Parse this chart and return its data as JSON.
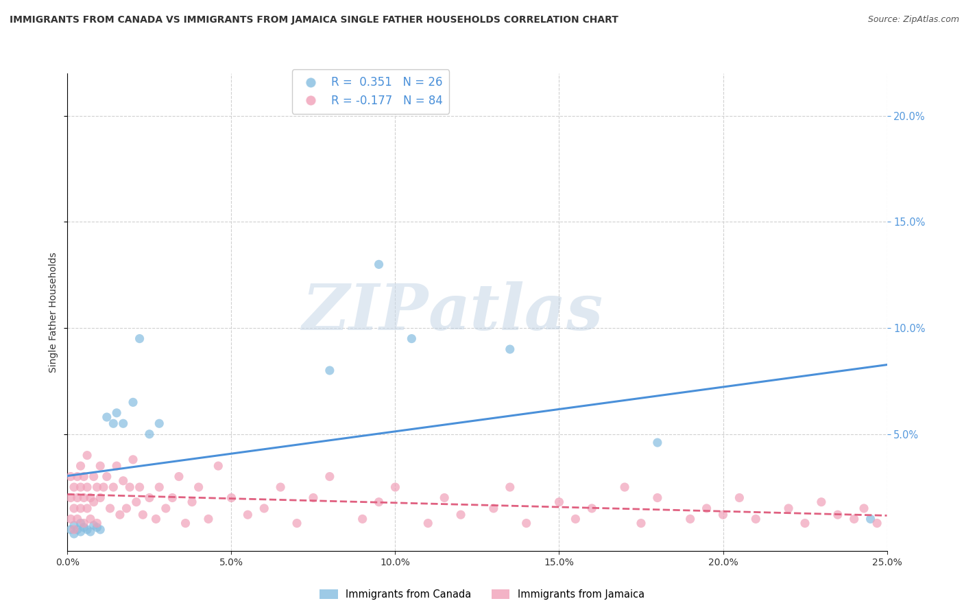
{
  "title": "IMMIGRANTS FROM CANADA VS IMMIGRANTS FROM JAMAICA SINGLE FATHER HOUSEHOLDS CORRELATION CHART",
  "source": "Source: ZipAtlas.com",
  "ylabel": "Single Father Households",
  "xlim": [
    0.0,
    0.25
  ],
  "ylim": [
    -0.005,
    0.22
  ],
  "yticks": [
    0.05,
    0.1,
    0.15,
    0.2
  ],
  "xticks": [
    0.0,
    0.05,
    0.1,
    0.15,
    0.2,
    0.25
  ],
  "legend_label1": "Immigrants from Canada",
  "legend_label2": "Immigrants from Jamaica",
  "r1": 0.351,
  "n1": 26,
  "r2": -0.177,
  "n2": 84,
  "color1": "#85bde0",
  "color2": "#f0a0b8",
  "line_color1": "#4a90d9",
  "line_color2": "#e06080",
  "background": "#ffffff",
  "watermark_zip": "ZIP",
  "watermark_atlas": "atlas",
  "canada_x": [
    0.001,
    0.002,
    0.002,
    0.003,
    0.004,
    0.004,
    0.005,
    0.006,
    0.007,
    0.008,
    0.009,
    0.01,
    0.012,
    0.014,
    0.015,
    0.017,
    0.02,
    0.022,
    0.025,
    0.028,
    0.08,
    0.095,
    0.105,
    0.135,
    0.18,
    0.245
  ],
  "canada_y": [
    0.005,
    0.003,
    0.007,
    0.005,
    0.004,
    0.008,
    0.006,
    0.005,
    0.004,
    0.007,
    0.006,
    0.005,
    0.058,
    0.055,
    0.06,
    0.055,
    0.065,
    0.095,
    0.05,
    0.055,
    0.08,
    0.13,
    0.095,
    0.09,
    0.046,
    0.01
  ],
  "jamaica_x": [
    0.001,
    0.001,
    0.001,
    0.002,
    0.002,
    0.002,
    0.003,
    0.003,
    0.003,
    0.004,
    0.004,
    0.004,
    0.005,
    0.005,
    0.005,
    0.006,
    0.006,
    0.006,
    0.007,
    0.007,
    0.008,
    0.008,
    0.009,
    0.009,
    0.01,
    0.01,
    0.011,
    0.012,
    0.013,
    0.014,
    0.015,
    0.016,
    0.017,
    0.018,
    0.019,
    0.02,
    0.021,
    0.022,
    0.023,
    0.025,
    0.027,
    0.028,
    0.03,
    0.032,
    0.034,
    0.036,
    0.038,
    0.04,
    0.043,
    0.046,
    0.05,
    0.055,
    0.06,
    0.065,
    0.07,
    0.075,
    0.08,
    0.09,
    0.095,
    0.1,
    0.11,
    0.115,
    0.12,
    0.13,
    0.135,
    0.14,
    0.15,
    0.155,
    0.16,
    0.17,
    0.175,
    0.18,
    0.19,
    0.195,
    0.2,
    0.205,
    0.21,
    0.22,
    0.225,
    0.23,
    0.235,
    0.24,
    0.243,
    0.247
  ],
  "jamaica_y": [
    0.01,
    0.02,
    0.03,
    0.015,
    0.025,
    0.005,
    0.02,
    0.03,
    0.01,
    0.025,
    0.015,
    0.035,
    0.02,
    0.03,
    0.008,
    0.025,
    0.015,
    0.04,
    0.02,
    0.01,
    0.03,
    0.018,
    0.025,
    0.008,
    0.02,
    0.035,
    0.025,
    0.03,
    0.015,
    0.025,
    0.035,
    0.012,
    0.028,
    0.015,
    0.025,
    0.038,
    0.018,
    0.025,
    0.012,
    0.02,
    0.01,
    0.025,
    0.015,
    0.02,
    0.03,
    0.008,
    0.018,
    0.025,
    0.01,
    0.035,
    0.02,
    0.012,
    0.015,
    0.025,
    0.008,
    0.02,
    0.03,
    0.01,
    0.018,
    0.025,
    0.008,
    0.02,
    0.012,
    0.015,
    0.025,
    0.008,
    0.018,
    0.01,
    0.015,
    0.025,
    0.008,
    0.02,
    0.01,
    0.015,
    0.012,
    0.02,
    0.01,
    0.015,
    0.008,
    0.018,
    0.012,
    0.01,
    0.015,
    0.008
  ]
}
